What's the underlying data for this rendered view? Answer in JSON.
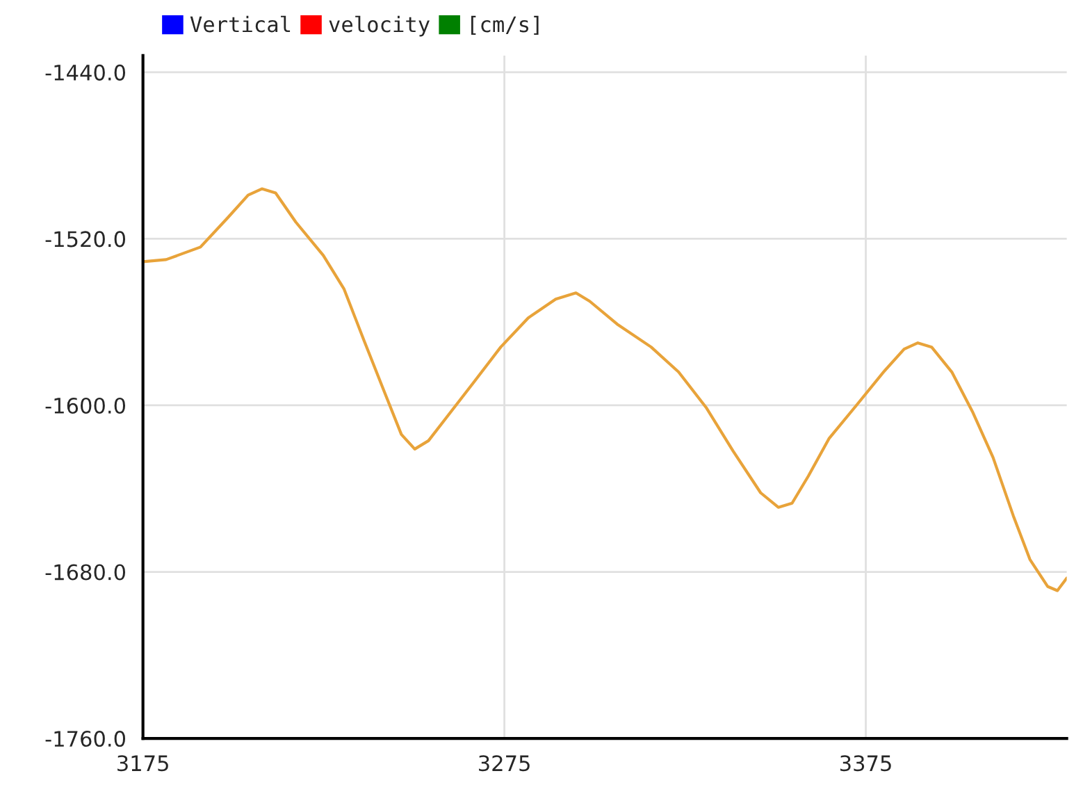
{
  "chart_data": {
    "type": "line",
    "x": [
      3175,
      3181.4,
      3190.9,
      3198.4,
      3204.1,
      3207.9,
      3211.7,
      3217.3,
      3224.9,
      3230.6,
      3236.2,
      3241.9,
      3246.5,
      3250.2,
      3254,
      3258.9,
      3266.5,
      3274,
      3281.6,
      3289.2,
      3294.8,
      3298.6,
      3306.2,
      3315.6,
      3323.2,
      3330.8,
      3338.3,
      3345.9,
      3350.8,
      3354.6,
      3359.1,
      3364.8,
      3372.4,
      3379.9,
      3385.6,
      3389.4,
      3393.2,
      3398.8,
      3404.5,
      3410.2,
      3415.8,
      3420.4,
      3425.3,
      3428,
      3430.6
    ],
    "series": [
      {
        "name": "Vertical",
        "color": "#0000ff",
        "values": [
          null,
          null,
          null,
          null,
          null,
          null,
          null,
          null,
          null,
          null,
          null,
          null,
          null,
          null,
          null,
          null,
          null,
          null,
          null,
          null,
          null,
          null,
          null,
          null,
          null,
          null,
          null,
          null,
          null,
          null,
          null,
          null,
          null,
          null,
          null,
          null,
          null,
          null,
          null,
          null,
          null,
          null,
          null,
          null,
          null
        ]
      },
      {
        "name": "velocity",
        "color": "#ff0000",
        "values": [
          null,
          null,
          null,
          null,
          null,
          null,
          null,
          null,
          null,
          null,
          null,
          null,
          null,
          null,
          null,
          null,
          null,
          null,
          null,
          null,
          null,
          null,
          null,
          null,
          null,
          null,
          null,
          null,
          null,
          null,
          null,
          null,
          null,
          null,
          null,
          null,
          null,
          null,
          null,
          null,
          null,
          null,
          null,
          null,
          null
        ]
      },
      {
        "name": "[cm/s]",
        "color": "#008000",
        "values": [
          null,
          null,
          null,
          null,
          null,
          null,
          null,
          null,
          null,
          null,
          null,
          null,
          null,
          null,
          null,
          null,
          null,
          null,
          null,
          null,
          null,
          null,
          null,
          null,
          null,
          null,
          null,
          null,
          null,
          null,
          null,
          null,
          null,
          null,
          null,
          null,
          null,
          null,
          null,
          null,
          null,
          null,
          null,
          null,
          null
        ]
      },
      {
        "color": "#e8a33a",
        "values": [
          -1531,
          -1530,
          -1524,
          -1510,
          -1499,
          -1496,
          -1498,
          -1512,
          -1528,
          -1544,
          -1569,
          -1594,
          -1614,
          -1621,
          -1617,
          -1606,
          -1589,
          -1572,
          -1558,
          -1549,
          -1546,
          -1550,
          -1561,
          -1572,
          -1584,
          -1601,
          -1622,
          -1642,
          -1649,
          -1647,
          -1634,
          -1616,
          -1600,
          -1584,
          -1573,
          -1570,
          -1572,
          -1584,
          -1603,
          -1625,
          -1653,
          -1674,
          -1687,
          -1689,
          -1683
        ]
      }
    ],
    "xlim": [
      3175,
      3430.6
    ],
    "xticks": [
      3175,
      3275,
      3375
    ],
    "ylim": [
      -1760,
      -1432
    ],
    "yticks": [
      {
        "value": -1440,
        "label": "-1440.0"
      },
      {
        "value": -1520,
        "label": "-1520.0"
      },
      {
        "value": -1600,
        "label": "-1600.0"
      },
      {
        "value": -1680,
        "label": "-1680.0"
      },
      {
        "value": -1760,
        "label": "-1760.0"
      }
    ],
    "grid": true,
    "legend": "top left",
    "line_style": "solid",
    "marker": "none"
  }
}
